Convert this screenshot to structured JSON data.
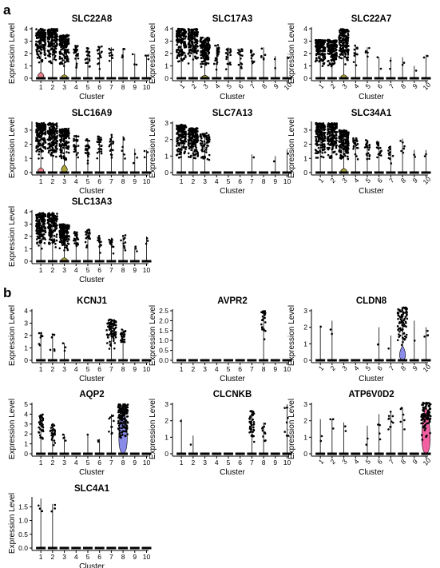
{
  "panels": {
    "a": {
      "letter": "a"
    },
    "b": {
      "letter": "b"
    }
  },
  "xlabel": "Cluster",
  "ylabel": "Expression Level",
  "clusters": [
    "1",
    "2",
    "3",
    "4",
    "5",
    "6",
    "7",
    "8",
    "9",
    "10"
  ],
  "colors": {
    "cluster1": "#e8818a",
    "cluster3": "#aba43a",
    "cluster8": "#8a8be9",
    "cluster10": "#f35fa3",
    "points": "#000000"
  },
  "chart_data": [
    {
      "type": "violin",
      "panel": "a",
      "title": "SLC22A8",
      "ylim": [
        0,
        4
      ],
      "yticks": [
        0,
        1,
        2,
        3,
        4
      ],
      "xticks_rotated": false,
      "violins": [
        {
          "cluster": "1",
          "height": 0.5,
          "color": "#e8818a"
        },
        {
          "cluster": "3",
          "height": 0.3,
          "color": "#aba43a"
        }
      ],
      "max_by_cluster": [
        4.0,
        4.0,
        3.5,
        2.7,
        2.5,
        2.6,
        2.5,
        2.4,
        2.0,
        1.9
      ],
      "density_by_cluster": [
        300,
        300,
        200,
        25,
        20,
        18,
        10,
        5,
        3,
        3
      ]
    },
    {
      "type": "violin",
      "panel": "a",
      "title": "SLC17A3",
      "ylim": [
        0,
        4
      ],
      "yticks": [
        0,
        1,
        2,
        3,
        4
      ],
      "xticks_rotated": true,
      "violins": [
        {
          "cluster": "3",
          "height": 0.25,
          "color": "#aba43a"
        }
      ],
      "max_by_cluster": [
        4.0,
        4.0,
        3.3,
        2.7,
        2.5,
        2.4,
        2.3,
        2.5,
        1.8,
        1.8
      ],
      "density_by_cluster": [
        300,
        300,
        200,
        25,
        20,
        16,
        12,
        6,
        2,
        2
      ]
    },
    {
      "type": "violin",
      "panel": "a",
      "title": "SLC22A7",
      "ylim": [
        0,
        4
      ],
      "yticks": [
        0,
        1,
        2,
        3,
        4
      ],
      "xticks_rotated": true,
      "violins": [
        {
          "cluster": "3",
          "height": 0.3,
          "color": "#aba43a"
        }
      ],
      "max_by_cluster": [
        3.1,
        3.1,
        4.0,
        2.7,
        2.5,
        1.7,
        1.7,
        1.7,
        1.0,
        1.9
      ],
      "density_by_cluster": [
        200,
        200,
        300,
        12,
        5,
        2,
        2,
        2,
        1,
        2
      ]
    },
    {
      "type": "violin",
      "panel": "a",
      "title": "SLC16A9",
      "ylim": [
        0,
        3.5
      ],
      "yticks": [
        0,
        1,
        2,
        3
      ],
      "xticks_rotated": false,
      "violins": [
        {
          "cluster": "1",
          "height": 0.35,
          "color": "#e8818a"
        },
        {
          "cluster": "3",
          "height": 0.55,
          "color": "#aba43a"
        }
      ],
      "max_by_cluster": [
        3.5,
        3.5,
        3.1,
        2.6,
        2.4,
        2.6,
        2.7,
        2.6,
        1.7,
        1.6
      ],
      "density_by_cluster": [
        300,
        300,
        250,
        25,
        25,
        25,
        18,
        6,
        3,
        3
      ]
    },
    {
      "type": "violin",
      "panel": "a",
      "title": "SLC7A13",
      "ylim": [
        0,
        3
      ],
      "yticks": [
        0,
        1,
        2,
        3
      ],
      "xticks_rotated": false,
      "violins": [],
      "max_by_cluster": [
        2.9,
        2.7,
        2.4,
        0,
        0,
        0,
        1.1,
        0,
        1.0,
        1.4
      ],
      "density_by_cluster": [
        200,
        200,
        60,
        0,
        0,
        0,
        1,
        0,
        1,
        1
      ]
    },
    {
      "type": "violin",
      "panel": "a",
      "title": "SLC34A1",
      "ylim": [
        0,
        3.5
      ],
      "yticks": [
        0,
        1,
        2,
        3
      ],
      "xticks_rotated": true,
      "violins": [
        {
          "cluster": "3",
          "height": 0.3,
          "color": "#aba43a"
        }
      ],
      "max_by_cluster": [
        3.5,
        3.5,
        3.0,
        2.5,
        2.3,
        2.2,
        1.9,
        2.4,
        1.6,
        1.6
      ],
      "density_by_cluster": [
        300,
        300,
        200,
        22,
        22,
        15,
        12,
        6,
        2,
        2
      ]
    },
    {
      "type": "violin",
      "panel": "a",
      "title": "SLC13A3",
      "ylim": [
        0,
        4
      ],
      "yticks": [
        0,
        1,
        2,
        3,
        4
      ],
      "xticks_rotated": false,
      "violins": [
        {
          "cluster": "3",
          "height": 0.3,
          "color": "#aba43a"
        }
      ],
      "max_by_cluster": [
        3.9,
        3.9,
        3.0,
        2.4,
        2.6,
        2.1,
        1.9,
        2.1,
        1.2,
        2.0
      ],
      "density_by_cluster": [
        300,
        300,
        200,
        25,
        20,
        15,
        15,
        10,
        3,
        3
      ]
    },
    {
      "type": "violin",
      "panel": "b",
      "title": "KCNJ1",
      "ylim": [
        0,
        4
      ],
      "yticks": [
        0,
        1,
        2,
        3,
        4
      ],
      "xticks_rotated": false,
      "violins": [],
      "max_by_cluster": [
        2.2,
        2.1,
        1.4,
        0,
        0,
        0,
        3.3,
        2.5,
        0,
        0
      ],
      "density_by_cluster": [
        8,
        6,
        3,
        0,
        0,
        0,
        80,
        25,
        0,
        0
      ]
    },
    {
      "type": "violin",
      "panel": "b",
      "title": "AVPR2",
      "ylim": [
        0,
        2.5
      ],
      "yticks": [
        0,
        0.5,
        1.0,
        1.5,
        2.0,
        2.5
      ],
      "ytick_labels": [
        "0.0",
        "0.5",
        "1.0",
        "1.5",
        "2.0",
        "2.5"
      ],
      "xticks_rotated": false,
      "violins": [],
      "max_by_cluster": [
        0,
        0,
        0,
        0,
        0,
        0,
        0,
        2.5,
        0,
        0
      ],
      "density_by_cluster": [
        0,
        0,
        0,
        0,
        0,
        0,
        0,
        25,
        0,
        0
      ]
    },
    {
      "type": "violin",
      "panel": "b",
      "title": "CLDN8",
      "ylim": [
        0,
        3
      ],
      "yticks": [
        0,
        1,
        2,
        3
      ],
      "xticks_rotated": true,
      "violins": [
        {
          "cluster": "8",
          "height": 0.9,
          "color": "#8a8be9"
        }
      ],
      "max_by_cluster": [
        2.1,
        2.4,
        0,
        0,
        0,
        2.0,
        1.5,
        3.2,
        2.4,
        2.0
      ],
      "density_by_cluster": [
        1,
        2,
        0,
        0,
        0,
        1,
        1,
        80,
        1,
        4
      ]
    },
    {
      "type": "violin",
      "panel": "b",
      "title": "AQP2",
      "ylim": [
        0,
        5
      ],
      "yticks": [
        0,
        1,
        2,
        3,
        4,
        5
      ],
      "xticks_rotated": false,
      "violins": [
        {
          "cluster": "8",
          "height": 5.0,
          "color": "#8a8be9"
        }
      ],
      "max_by_cluster": [
        4.0,
        3.0,
        2.0,
        0,
        2.0,
        1.5,
        4.0,
        5.0,
        0,
        0
      ],
      "density_by_cluster": [
        40,
        30,
        4,
        0,
        1,
        2,
        10,
        140,
        0,
        0
      ]
    },
    {
      "type": "violin",
      "panel": "b",
      "title": "CLCNKB",
      "ylim": [
        0,
        3
      ],
      "yticks": [
        0,
        1,
        2,
        3
      ],
      "xticks_rotated": false,
      "violins": [],
      "max_by_cluster": [
        2.1,
        1.1,
        0,
        0,
        0,
        0,
        2.6,
        1.9,
        0,
        3.0
      ],
      "density_by_cluster": [
        1,
        1,
        0,
        0,
        0,
        0,
        40,
        10,
        0,
        8
      ]
    },
    {
      "type": "violin",
      "panel": "b",
      "title": "ATP6V0D2",
      "ylim": [
        0,
        3
      ],
      "yticks": [
        0,
        1,
        2,
        3
      ],
      "xticks_rotated": true,
      "violins": [
        {
          "cluster": "10",
          "height": 3.1,
          "color": "#f35fa3"
        }
      ],
      "max_by_cluster": [
        2.1,
        2.1,
        1.9,
        0,
        1.7,
        2.4,
        2.6,
        2.8,
        0,
        3.1
      ],
      "density_by_cluster": [
        2,
        3,
        2,
        0,
        2,
        4,
        10,
        6,
        0,
        90
      ]
    },
    {
      "type": "violin",
      "panel": "b",
      "title": "SLC4A1",
      "ylim": [
        0,
        1.8
      ],
      "yticks": [
        0,
        0.5,
        1.0,
        1.5
      ],
      "ytick_labels": [
        "0.0",
        "0.5",
        "1.0",
        "1.5"
      ],
      "xticks_rotated": false,
      "violins": [],
      "max_by_cluster": [
        1.8,
        1.6,
        0,
        0,
        0,
        0,
        0,
        0,
        0,
        0
      ],
      "density_by_cluster": [
        3,
        3,
        0,
        0,
        0,
        0,
        0,
        0,
        0,
        0
      ]
    }
  ]
}
